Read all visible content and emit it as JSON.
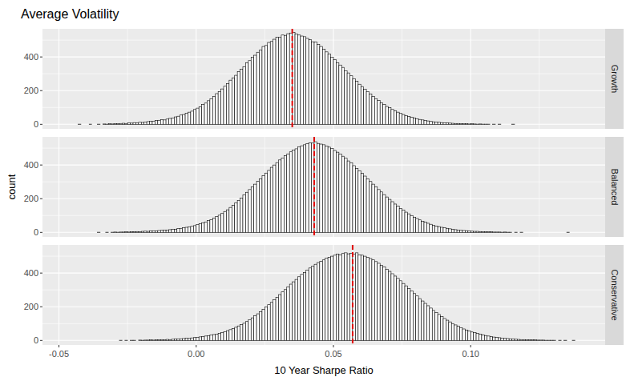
{
  "chart_data": {
    "type": "histogram",
    "title": "Average Volatility",
    "x_label": "10 Year Sharpe Ratio",
    "y_label": "count",
    "bins": [
      -0.047,
      -0.046,
      -0.045,
      -0.044,
      -0.043,
      -0.042,
      -0.041,
      -0.04,
      -0.039,
      -0.038,
      -0.037,
      -0.036,
      -0.035,
      -0.034,
      -0.033,
      -0.032,
      -0.031,
      -0.03,
      -0.029,
      -0.028,
      -0.027,
      -0.026,
      -0.025,
      -0.024,
      -0.023,
      -0.022,
      -0.021,
      -0.02,
      -0.019,
      -0.018,
      -0.017,
      -0.016,
      -0.015,
      -0.014,
      -0.013,
      -0.012,
      -0.011,
      -0.01,
      -0.009,
      -0.008,
      -0.007,
      -0.006,
      -0.005,
      -0.004,
      -0.003,
      -0.002,
      -0.001,
      0,
      0.001,
      0.002,
      0.003,
      0.004,
      0.005,
      0.006,
      0.007,
      0.008,
      0.009,
      0.01,
      0.011,
      0.012,
      0.013,
      0.014,
      0.015,
      0.016,
      0.017,
      0.018,
      0.019,
      0.02,
      0.021,
      0.022,
      0.023,
      0.024,
      0.025,
      0.026,
      0.027,
      0.028,
      0.029,
      0.03,
      0.031,
      0.032,
      0.033,
      0.034,
      0.035,
      0.036,
      0.037,
      0.038,
      0.039,
      0.04,
      0.041,
      0.042,
      0.043,
      0.044,
      0.045,
      0.046,
      0.047,
      0.048,
      0.049,
      0.05,
      0.051,
      0.052,
      0.053,
      0.054,
      0.055,
      0.056,
      0.057,
      0.058,
      0.059,
      0.06,
      0.061,
      0.062,
      0.063,
      0.064,
      0.065,
      0.066,
      0.067,
      0.068,
      0.069,
      0.07,
      0.071,
      0.072,
      0.073,
      0.074,
      0.075,
      0.076,
      0.077,
      0.078,
      0.079,
      0.08,
      0.081,
      0.082,
      0.083,
      0.084,
      0.085,
      0.086,
      0.087,
      0.088,
      0.089,
      0.09,
      0.091,
      0.092,
      0.093,
      0.094,
      0.095,
      0.096,
      0.097,
      0.098,
      0.099,
      0.1,
      0.101,
      0.102,
      0.103,
      0.104,
      0.105,
      0.106,
      0.107,
      0.108,
      0.109,
      0.11,
      0.111,
      0.112,
      0.113,
      0.114,
      0.115,
      0.116,
      0.117,
      0.118,
      0.119,
      0.12,
      0.121,
      0.122,
      0.123,
      0.124,
      0.125,
      0.126,
      0.127,
      0.128,
      0.129,
      0.13,
      0.131,
      0.132,
      0.133,
      0.134,
      0.135,
      0.136,
      0.137,
      0.138,
      0.139,
      0.14
    ],
    "series": [
      {
        "name": "Growth",
        "mean": 0.035,
        "values": [
          0,
          0,
          0,
          0,
          1,
          0,
          0,
          0,
          1,
          0,
          0,
          1,
          0,
          2,
          1,
          3,
          2,
          4,
          3,
          5,
          6,
          5,
          8,
          7,
          10,
          9,
          12,
          11,
          14,
          16,
          18,
          17,
          22,
          24,
          27,
          26,
          31,
          35,
          38,
          44,
          48,
          55,
          58,
          66,
          72,
          78,
          88,
          96,
          104,
          117,
          126,
          140,
          152,
          165,
          182,
          194,
          210,
          226,
          241,
          262,
          276,
          291,
          312,
          328,
          342,
          365,
          378,
          398,
          410,
          428,
          440,
          462,
          468,
          486,
          492,
          505,
          518,
          516,
          530,
          528,
          538,
          542,
          545,
          536,
          530,
          524,
          520,
          510,
          502,
          490,
          488,
          474,
          462,
          446,
          430,
          418,
          398,
          384,
          366,
          352,
          338,
          318,
          305,
          288,
          270,
          256,
          238,
          224,
          208,
          195,
          180,
          166,
          152,
          142,
          128,
          118,
          106,
          98,
          88,
          80,
          72,
          66,
          58,
          52,
          46,
          42,
          37,
          33,
          29,
          26,
          23,
          20,
          17,
          15,
          13,
          12,
          10,
          9,
          8,
          7,
          6,
          5,
          5,
          4,
          3,
          3,
          2,
          3,
          2,
          1,
          2,
          1,
          1,
          1,
          0,
          1,
          0,
          1,
          0,
          0,
          0,
          0,
          1,
          0,
          0,
          0,
          0,
          0,
          0,
          0,
          0,
          0,
          0,
          0,
          0,
          0,
          0,
          0,
          0,
          0,
          0,
          0,
          0,
          0,
          0,
          0,
          0
        ]
      },
      {
        "name": "Balanced",
        "mean": 0.043,
        "values": [
          0,
          0,
          0,
          0,
          0,
          0,
          0,
          0,
          0,
          0,
          0,
          1,
          0,
          0,
          1,
          0,
          1,
          2,
          1,
          2,
          2,
          3,
          2,
          4,
          3,
          5,
          4,
          6,
          7,
          6,
          8,
          9,
          8,
          11,
          12,
          14,
          13,
          16,
          18,
          19,
          22,
          24,
          27,
          30,
          33,
          36,
          40,
          46,
          52,
          56,
          62,
          70,
          76,
          84,
          94,
          102,
          112,
          124,
          134,
          148,
          160,
          176,
          190,
          204,
          222,
          238,
          254,
          270,
          286,
          304,
          318,
          336,
          352,
          368,
          386,
          400,
          414,
          430,
          442,
          456,
          466,
          478,
          488,
          496,
          508,
          514,
          520,
          526,
          532,
          530,
          538,
          528,
          524,
          520,
          512,
          506,
          498,
          486,
          476,
          464,
          452,
          440,
          424,
          412,
          396,
          380,
          366,
          350,
          334,
          318,
          302,
          286,
          270,
          254,
          240,
          224,
          210,
          196,
          182,
          168,
          156,
          142,
          132,
          120,
          110,
          100,
          90,
          82,
          74,
          66,
          60,
          54,
          48,
          42,
          38,
          34,
          30,
          27,
          24,
          21,
          18,
          16,
          14,
          12,
          11,
          10,
          8,
          7,
          6,
          6,
          5,
          4,
          4,
          3,
          3,
          2,
          2,
          2,
          1,
          2,
          1,
          1,
          0,
          1,
          0,
          1,
          0,
          0,
          0,
          0,
          0,
          0,
          0,
          0,
          0,
          0,
          0,
          0,
          0,
          0,
          0,
          0,
          1,
          0,
          0,
          0,
          0
        ]
      },
      {
        "name": "Conservative",
        "mean": 0.057,
        "values": [
          0,
          0,
          0,
          0,
          0,
          0,
          0,
          0,
          0,
          0,
          0,
          0,
          0,
          0,
          0,
          0,
          0,
          0,
          0,
          1,
          0,
          1,
          0,
          1,
          1,
          0,
          2,
          1,
          2,
          2,
          3,
          2,
          4,
          3,
          5,
          4,
          6,
          5,
          7,
          8,
          9,
          10,
          11,
          13,
          12,
          15,
          17,
          18,
          21,
          23,
          26,
          28,
          32,
          35,
          38,
          42,
          47,
          52,
          58,
          64,
          70,
          78,
          86,
          94,
          102,
          112,
          122,
          134,
          146,
          158,
          170,
          184,
          198,
          212,
          226,
          242,
          256,
          272,
          288,
          302,
          318,
          334,
          348,
          362,
          378,
          392,
          404,
          418,
          430,
          440,
          452,
          462,
          470,
          478,
          488,
          494,
          500,
          506,
          512,
          508,
          516,
          520,
          514,
          518,
          512,
          520,
          508,
          506,
          500,
          494,
          486,
          478,
          468,
          458,
          446,
          436,
          422,
          410,
          396,
          382,
          368,
          354,
          338,
          324,
          308,
          294,
          278,
          264,
          248,
          234,
          220,
          206,
          192,
          178,
          166,
          154,
          142,
          130,
          120,
          110,
          100,
          92,
          84,
          76,
          68,
          62,
          56,
          50,
          46,
          41,
          37,
          33,
          29,
          26,
          23,
          20,
          18,
          16,
          14,
          12,
          11,
          9,
          8,
          7,
          6,
          5,
          5,
          4,
          3,
          3,
          3,
          2,
          2,
          2,
          1,
          1,
          1,
          1,
          0,
          1,
          0,
          1,
          0,
          0,
          1,
          0,
          0
        ]
      }
    ],
    "xlim": [
      -0.056,
      0.149
    ],
    "xticks": [
      -0.05,
      {
        "value": 0,
        "label": "0.00"
      },
      0.05,
      {
        "value": 0.1,
        "label": "0.10"
      }
    ],
    "ylim": [
      -27,
      567
    ],
    "yticks": [
      0,
      200,
      400
    ],
    "color": "#ffffff",
    "grid": true
  }
}
